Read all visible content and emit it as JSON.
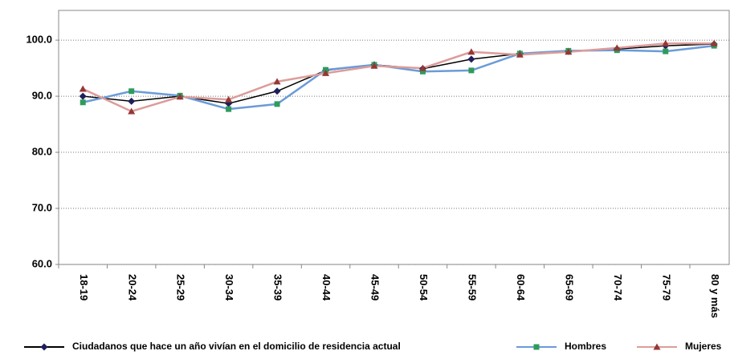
{
  "chart_data": {
    "type": "line",
    "categories": [
      "18-19",
      "20-24",
      "25-29",
      "30-34",
      "35-39",
      "40-44",
      "45-49",
      "50-54",
      "55-59",
      "60-64",
      "65-69",
      "70-74",
      "75-79",
      "80 y más"
    ],
    "series": [
      {
        "name": "Ciudadanos que hace un año vivían en el domicilio de residencia actual",
        "color": "#000000",
        "marker": "diamond",
        "marker_color": "#1f1f5c",
        "values": [
          90.0,
          89.1,
          90.0,
          88.7,
          90.9,
          94.6,
          95.6,
          94.9,
          96.6,
          97.6,
          98.0,
          98.4,
          99.0,
          99.3
        ]
      },
      {
        "name": "Hombres",
        "color": "#6a9bd8",
        "marker": "square",
        "marker_color": "#2e9b5c",
        "values": [
          88.9,
          90.9,
          90.1,
          87.7,
          88.6,
          94.7,
          95.6,
          94.4,
          94.6,
          97.6,
          98.1,
          98.2,
          98.0,
          99.0
        ]
      },
      {
        "name": "Mujeres",
        "color": "#dc9c9a",
        "marker": "triangle",
        "marker_color": "#953735",
        "values": [
          91.3,
          87.3,
          89.9,
          89.4,
          92.6,
          94.1,
          95.4,
          95.0,
          97.9,
          97.4,
          97.9,
          98.6,
          99.4,
          99.4
        ]
      }
    ],
    "ylim": [
      60,
      105.3
    ],
    "yticks": [
      {
        "value": 60,
        "label": "60.0"
      },
      {
        "value": 70,
        "label": "70.0"
      },
      {
        "value": 80,
        "label": "80.0"
      },
      {
        "value": 90,
        "label": "90.0"
      },
      {
        "value": 100,
        "label": "100.0"
      }
    ],
    "grid": true,
    "grid_style": "dotted",
    "legend_position": "bottom"
  }
}
